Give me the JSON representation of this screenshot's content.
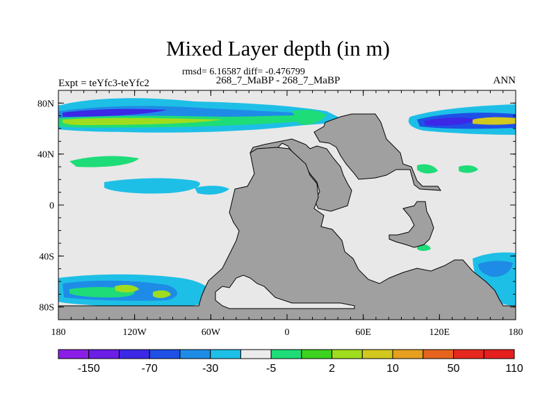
{
  "title": "Mixed Layer depth (in m)",
  "stats": "rmsd= 6.16587  diff= -0.476799",
  "subtitle": "268_7_MaBP - 268_7_MaBP",
  "left_label": "Expt = teYfc3-teYfc2",
  "right_label": "ANN",
  "axes": {
    "x_ticks": [
      {
        "lon": -180,
        "label": "180"
      },
      {
        "lon": -120,
        "label": "120W"
      },
      {
        "lon": -60,
        "label": "60W"
      },
      {
        "lon": 0,
        "label": "0"
      },
      {
        "lon": 60,
        "label": "60E"
      },
      {
        "lon": 120,
        "label": "120E"
      },
      {
        "lon": 180,
        "label": "180"
      }
    ],
    "y_ticks": [
      {
        "lat": 80,
        "label": "80N"
      },
      {
        "lat": 40,
        "label": "40N"
      },
      {
        "lat": 0,
        "label": "0"
      },
      {
        "lat": -40,
        "label": "40S"
      },
      {
        "lat": -80,
        "label": "80S"
      }
    ],
    "lon_range": [
      -180,
      180
    ],
    "lat_range": [
      -90,
      90
    ]
  },
  "colorbar": {
    "colors": [
      "#8a1ee6",
      "#6a1ee6",
      "#3c28e6",
      "#1e50e6",
      "#1e8ce6",
      "#1ebfe6",
      "#ebebeb",
      "#1edc78",
      "#3cd21e",
      "#a0dc1e",
      "#d2c81e",
      "#e6a01e",
      "#e6641e",
      "#e6281e",
      "#e61e1e"
    ],
    "labels": [
      {
        "after_box": 1,
        "label": "-150"
      },
      {
        "after_box": 3,
        "label": "-70"
      },
      {
        "after_box": 5,
        "label": "-30"
      },
      {
        "after_box": 7,
        "label": "-5"
      },
      {
        "after_box": 9,
        "label": "2"
      },
      {
        "after_box": 11,
        "label": "10"
      },
      {
        "after_box": 13,
        "label": "50"
      },
      {
        "after_box": 15,
        "label": "110"
      }
    ]
  },
  "colors": {
    "ocean_background": "#e8e8e8",
    "land": "#a0a0a0"
  }
}
